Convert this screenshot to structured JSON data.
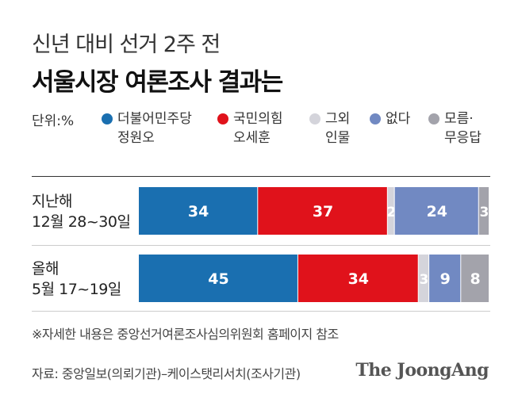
{
  "header": {
    "subtitle": "신년 대비 선거 2주 전",
    "title": "서울시장 여론조사 결과는"
  },
  "legend": {
    "unit": "단위:%",
    "items": [
      {
        "line1": "더불어민주당",
        "line2": "정원오",
        "color": "#1a6fb0"
      },
      {
        "line1": "국민의힘",
        "line2": "오세훈",
        "color": "#e0121b"
      },
      {
        "line1": "그외",
        "line2": "인물",
        "color": "#d4d4db"
      },
      {
        "line1": "없다",
        "line2": "",
        "color": "#7189c2"
      },
      {
        "line1": "모름·",
        "line2": "무응답",
        "color": "#a3a3ab"
      }
    ]
  },
  "chart_data": {
    "type": "bar",
    "orientation": "horizontal",
    "stacked": true,
    "percent_scale": true,
    "categories": [
      "지난해 12월 28~30일",
      "올해 5월 17~19일"
    ],
    "category_lines": [
      [
        "지난해",
        "12월 28~30일"
      ],
      [
        "올해",
        "5월 17~19일"
      ]
    ],
    "series": [
      {
        "name": "더불어민주당 정원오",
        "values": [
          34,
          45
        ],
        "color": "#1a6fb0"
      },
      {
        "name": "국민의힘 오세훈",
        "values": [
          37,
          34
        ],
        "color": "#e0121b"
      },
      {
        "name": "그외 인물",
        "values": [
          2,
          3
        ],
        "color": "#d4d4db"
      },
      {
        "name": "없다",
        "values": [
          24,
          9
        ],
        "color": "#7189c2"
      },
      {
        "name": "모름·무응답",
        "values": [
          3,
          8
        ],
        "color": "#a3a3ab"
      }
    ],
    "value_labels_color": "#ffffff"
  },
  "footer": {
    "note": "※자세한 내용은 중앙선거여론조사심의위원회 홈페이지 참조",
    "source": "자료: 중앙일보(의뢰기관)–케이스탯리서치(조사기관)",
    "logo": "The JoongAng"
  }
}
